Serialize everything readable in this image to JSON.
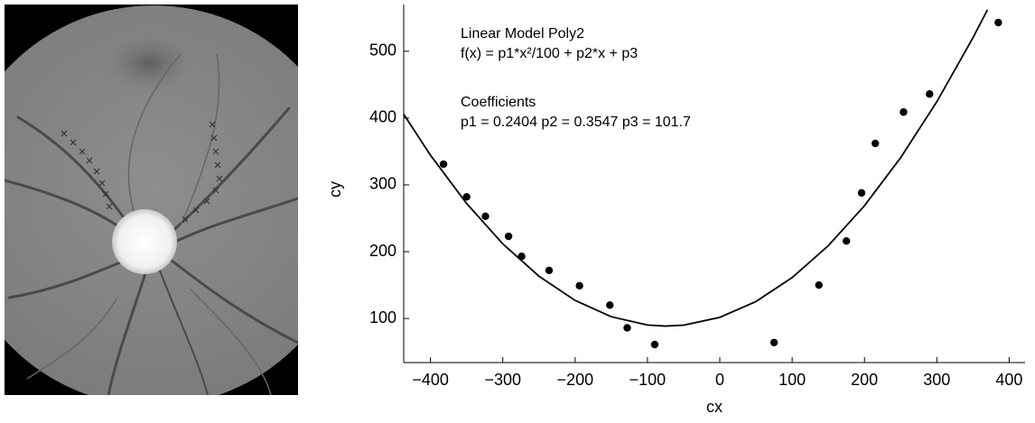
{
  "chart_data": {
    "type": "scatter",
    "annotations": [
      "Linear Model Poly2",
      "f(x) = p1*x²/100 + p2*x + p3",
      "Coefficients",
      "p1 = 0.2404 p2 = 0.3547 p3 = 101.7"
    ],
    "xlabel": "cx",
    "ylabel": "cy",
    "xlim": [
      -437,
      422
    ],
    "ylim": [
      34,
      570
    ],
    "xticks": [
      {
        "value": -400,
        "label": "−400"
      },
      {
        "value": -300,
        "label": "−300"
      },
      {
        "value": -200,
        "label": "−200"
      },
      {
        "value": -100,
        "label": "−100"
      },
      0,
      100,
      200,
      300,
      400
    ],
    "yticks": [
      100,
      200,
      300,
      400,
      500
    ],
    "series": [
      {
        "type": "scatter",
        "color": "#000000",
        "x": [
          -382,
          -350,
          -324,
          -292,
          -274,
          -236,
          -194,
          -152,
          -128,
          -90,
          75,
          137,
          175,
          196,
          215,
          254,
          290,
          385
        ],
        "values": [
          331,
          282,
          253,
          223,
          193,
          172,
          149,
          120,
          86,
          61,
          64,
          150,
          216,
          288,
          362,
          409,
          436,
          543
        ]
      },
      {
        "type": "line",
        "color": "#000000",
        "x": [
          -437,
          -400,
          -350,
          -300,
          -250,
          -200,
          -150,
          -100,
          -75,
          -50,
          0,
          50,
          100,
          150,
          200,
          250,
          300,
          350,
          370
        ],
        "values": [
          405.8,
          344.4,
          272.1,
          211.7,
          163.3,
          127.0,
          102.6,
          90.2,
          88.6,
          90.0,
          101.7,
          125.4,
          161.2,
          209.0,
          268.8,
          340.7,
          424.5,
          520.3,
          562.0
        ]
      }
    ]
  }
}
